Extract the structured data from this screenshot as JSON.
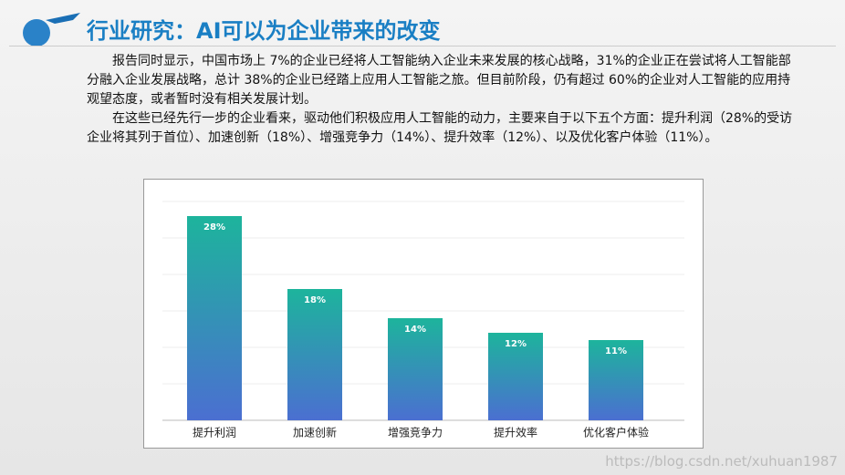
{
  "header": {
    "title": "行业研究：AI可以为企业带来的改变"
  },
  "paragraphs": [
    "报告同时显示，中国市场上 7%的企业已经将人工智能纳入企业未来发展的核心战略，31%的企业正在尝试将人工智能部分融入企业发展战略，总计 38%的企业已经踏上应用人工智能之旅。但目前阶段，仍有超过 60%的企业对人工智能的应用持观望态度，或者暂时没有相关发展计划。",
    "在这些已经先行一步的企业看来，驱动他们积极应用人工智能的动力，主要来自于以下五个方面：提升利润（28%的受访企业将其列于首位）、加速创新（18%）、增强竞争力（14%）、提升效率（12%）、以及优化客户体验（11%）。"
  ],
  "watermark": "https://blog.csdn.net/xuhuan1987",
  "chart_data": {
    "type": "bar",
    "categories": [
      "提升利润",
      "加速创新",
      "增强竞争力",
      "提升效率",
      "优化客户体验"
    ],
    "values": [
      28,
      18,
      14,
      12,
      11
    ],
    "value_labels": [
      "28%",
      "18%",
      "14%",
      "12%",
      "11%"
    ],
    "gradient": [
      "#1db49c",
      "#4b6fd1"
    ],
    "ylim": [
      0,
      30
    ],
    "yticks": [
      0,
      5,
      10,
      15,
      20,
      25,
      30
    ],
    "grid": true
  }
}
